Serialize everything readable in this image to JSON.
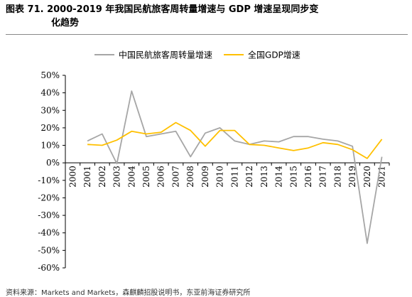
{
  "figure": {
    "title_line1": "图表 71. 2000-2019 年我国民航旅客周转量增速与 GDP 增速呈现同步变",
    "title_line2": "化趋势",
    "source": "资料来源：Markets and Markets，森麒麟招股说明书，东亚前海证券研究所"
  },
  "chart_data": {
    "type": "line",
    "categories": [
      "2000",
      "2001",
      "2002",
      "2003",
      "2004",
      "2005",
      "2006",
      "2007",
      "2008",
      "2009",
      "2010",
      "2011",
      "2012",
      "2013",
      "2014",
      "2015",
      "2016",
      "2017",
      "2018",
      "2019",
      "2020",
      "2021"
    ],
    "series": [
      {
        "name": "中国民航旅客周转量增速",
        "color": "#a6a6a6",
        "values": [
          null,
          12.5,
          16.5,
          -0.5,
          41,
          15,
          16.5,
          18,
          3.5,
          17,
          20,
          12.5,
          10.5,
          12.5,
          12,
          15,
          15,
          13.5,
          12.5,
          9.5,
          -46,
          3.5
        ]
      },
      {
        "name": "全国GDP增速",
        "color": "#ffc000",
        "values": [
          null,
          10.5,
          10,
          13,
          18,
          16.5,
          17.5,
          23,
          18.5,
          9.5,
          18.5,
          18.5,
          10.5,
          10,
          8.5,
          7,
          8.5,
          11.5,
          10.5,
          7.5,
          2.5,
          13.5
        ]
      }
    ],
    "yticks": [
      "50%",
      "40%",
      "30%",
      "20%",
      "10%",
      "0%",
      "-10%",
      "-20%",
      "-30%",
      "-40%",
      "-50%",
      "-60%"
    ],
    "ylim": [
      -60,
      50
    ],
    "legend_position": "top",
    "grid": false
  }
}
